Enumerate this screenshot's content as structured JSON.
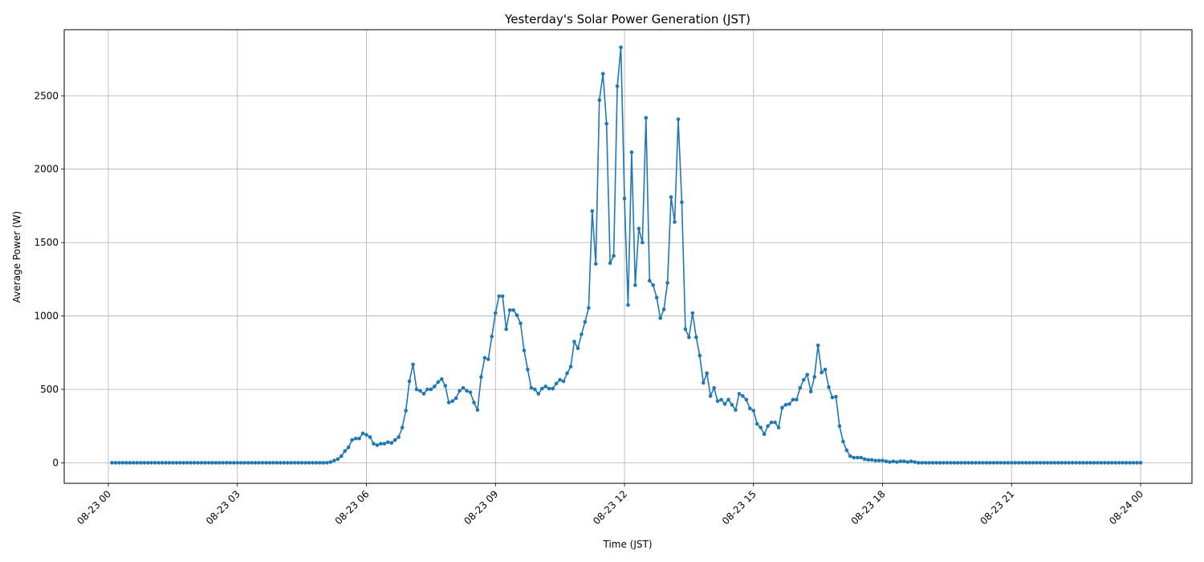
{
  "chart_data": {
    "type": "line",
    "title": "Yesterday's Solar Power Generation (JST)",
    "xlabel": "Time (JST)",
    "ylabel": "Average Power (W)",
    "x_range": [
      "2023-08-23 00:00",
      "2023-08-24 00:00"
    ],
    "x_ticks": [
      "08-23 00",
      "08-23 03",
      "08-23 06",
      "08-23 09",
      "08-23 12",
      "08-23 15",
      "08-23 18",
      "08-23 21",
      "08-24 00"
    ],
    "y_ticks": [
      0,
      500,
      1000,
      1500,
      2000,
      2500
    ],
    "ylim": [
      -140,
      2950
    ],
    "grid": true,
    "color": "#1f77b4",
    "marker": "circle",
    "series": [
      {
        "points": [
          [
            "00:05",
            0
          ],
          [
            "00:10",
            0
          ],
          [
            "00:15",
            0
          ],
          [
            "00:20",
            0
          ],
          [
            "00:25",
            0
          ],
          [
            "00:30",
            0
          ],
          [
            "00:35",
            0
          ],
          [
            "00:40",
            0
          ],
          [
            "00:45",
            0
          ],
          [
            "00:50",
            0
          ],
          [
            "00:55",
            0
          ],
          [
            "01:00",
            0
          ],
          [
            "01:05",
            0
          ],
          [
            "01:10",
            0
          ],
          [
            "01:15",
            0
          ],
          [
            "01:20",
            0
          ],
          [
            "01:25",
            0
          ],
          [
            "01:30",
            0
          ],
          [
            "01:35",
            0
          ],
          [
            "01:40",
            0
          ],
          [
            "01:45",
            0
          ],
          [
            "01:50",
            0
          ],
          [
            "01:55",
            0
          ],
          [
            "02:00",
            0
          ],
          [
            "02:05",
            0
          ],
          [
            "02:10",
            0
          ],
          [
            "02:15",
            0
          ],
          [
            "02:20",
            0
          ],
          [
            "02:25",
            0
          ],
          [
            "02:30",
            0
          ],
          [
            "02:35",
            0
          ],
          [
            "02:40",
            0
          ],
          [
            "02:45",
            0
          ],
          [
            "02:50",
            0
          ],
          [
            "02:55",
            0
          ],
          [
            "03:00",
            0
          ],
          [
            "03:05",
            0
          ],
          [
            "03:10",
            0
          ],
          [
            "03:15",
            0
          ],
          [
            "03:20",
            0
          ],
          [
            "03:25",
            0
          ],
          [
            "03:30",
            0
          ],
          [
            "03:35",
            0
          ],
          [
            "03:40",
            0
          ],
          [
            "03:45",
            0
          ],
          [
            "03:50",
            0
          ],
          [
            "03:55",
            0
          ],
          [
            "04:00",
            0
          ],
          [
            "04:05",
            0
          ],
          [
            "04:10",
            0
          ],
          [
            "04:15",
            0
          ],
          [
            "04:20",
            0
          ],
          [
            "04:25",
            0
          ],
          [
            "04:30",
            0
          ],
          [
            "04:35",
            0
          ],
          [
            "04:40",
            0
          ],
          [
            "04:45",
            0
          ],
          [
            "04:50",
            0
          ],
          [
            "04:55",
            0
          ],
          [
            "05:00",
            0
          ],
          [
            "05:05",
            0
          ],
          [
            "05:10",
            5
          ],
          [
            "05:15",
            15
          ],
          [
            "05:20",
            25
          ],
          [
            "05:25",
            45
          ],
          [
            "05:30",
            80
          ],
          [
            "05:35",
            105
          ],
          [
            "05:40",
            155
          ],
          [
            "05:45",
            165
          ],
          [
            "05:50",
            165
          ],
          [
            "05:55",
            200
          ],
          [
            "06:00",
            190
          ],
          [
            "06:05",
            175
          ],
          [
            "06:10",
            130
          ],
          [
            "06:15",
            120
          ],
          [
            "06:20",
            130
          ],
          [
            "06:25",
            130
          ],
          [
            "06:30",
            140
          ],
          [
            "06:35",
            135
          ],
          [
            "06:40",
            155
          ],
          [
            "06:45",
            175
          ],
          [
            "06:50",
            240
          ],
          [
            "06:55",
            355
          ],
          [
            "07:00",
            555
          ],
          [
            "07:05",
            670
          ],
          [
            "07:10",
            500
          ],
          [
            "07:15",
            490
          ],
          [
            "07:20",
            470
          ],
          [
            "07:25",
            500
          ],
          [
            "07:30",
            500
          ],
          [
            "07:35",
            520
          ],
          [
            "07:40",
            550
          ],
          [
            "07:45",
            570
          ],
          [
            "07:50",
            525
          ],
          [
            "07:55",
            410
          ],
          [
            "08:00",
            420
          ],
          [
            "08:05",
            440
          ],
          [
            "08:10",
            490
          ],
          [
            "08:15",
            510
          ],
          [
            "08:20",
            490
          ],
          [
            "08:25",
            480
          ],
          [
            "08:30",
            410
          ],
          [
            "08:35",
            360
          ],
          [
            "08:40",
            585
          ],
          [
            "08:45",
            715
          ],
          [
            "08:50",
            705
          ],
          [
            "08:55",
            860
          ],
          [
            "09:00",
            1020
          ],
          [
            "09:05",
            1135
          ],
          [
            "09:10",
            1135
          ],
          [
            "09:15",
            910
          ],
          [
            "09:20",
            1040
          ],
          [
            "09:25",
            1040
          ],
          [
            "09:30",
            1005
          ],
          [
            "09:35",
            950
          ],
          [
            "09:40",
            765
          ],
          [
            "09:45",
            635
          ],
          [
            "09:50",
            510
          ],
          [
            "09:55",
            500
          ],
          [
            "10:00",
            470
          ],
          [
            "10:05",
            505
          ],
          [
            "10:10",
            520
          ],
          [
            "10:15",
            505
          ],
          [
            "10:20",
            505
          ],
          [
            "10:25",
            540
          ],
          [
            "10:30",
            565
          ],
          [
            "10:35",
            555
          ],
          [
            "10:40",
            610
          ],
          [
            "10:45",
            655
          ],
          [
            "10:50",
            825
          ],
          [
            "10:55",
            780
          ],
          [
            "11:00",
            875
          ],
          [
            "11:05",
            960
          ],
          [
            "11:10",
            1055
          ],
          [
            "11:15",
            1715
          ],
          [
            "11:20",
            1355
          ],
          [
            "11:25",
            2470
          ],
          [
            "11:30",
            2650
          ],
          [
            "11:35",
            2310
          ],
          [
            "11:40",
            1360
          ],
          [
            "11:45",
            1410
          ],
          [
            "11:50",
            2565
          ],
          [
            "11:55",
            2830
          ],
          [
            "12:00",
            1800
          ],
          [
            "12:05",
            1075
          ],
          [
            "12:10",
            2115
          ],
          [
            "12:15",
            1210
          ],
          [
            "12:20",
            1595
          ],
          [
            "12:25",
            1500
          ],
          [
            "12:30",
            2350
          ],
          [
            "12:35",
            1240
          ],
          [
            "12:40",
            1210
          ],
          [
            "12:45",
            1125
          ],
          [
            "12:50",
            985
          ],
          [
            "12:55",
            1045
          ],
          [
            "13:00",
            1225
          ],
          [
            "13:05",
            1810
          ],
          [
            "13:10",
            1640
          ],
          [
            "13:15",
            2340
          ],
          [
            "13:20",
            1775
          ],
          [
            "13:25",
            910
          ],
          [
            "13:30",
            855
          ],
          [
            "13:35",
            1020
          ],
          [
            "13:40",
            855
          ],
          [
            "13:45",
            730
          ],
          [
            "13:50",
            545
          ],
          [
            "13:55",
            610
          ],
          [
            "14:00",
            455
          ],
          [
            "14:05",
            510
          ],
          [
            "14:10",
            420
          ],
          [
            "14:15",
            430
          ],
          [
            "14:20",
            400
          ],
          [
            "14:25",
            430
          ],
          [
            "14:30",
            395
          ],
          [
            "14:35",
            360
          ],
          [
            "14:40",
            470
          ],
          [
            "14:45",
            455
          ],
          [
            "14:50",
            430
          ],
          [
            "14:55",
            370
          ],
          [
            "15:00",
            355
          ],
          [
            "15:05",
            265
          ],
          [
            "15:10",
            240
          ],
          [
            "15:15",
            195
          ],
          [
            "15:20",
            250
          ],
          [
            "15:25",
            275
          ],
          [
            "15:30",
            275
          ],
          [
            "15:35",
            240
          ],
          [
            "15:40",
            375
          ],
          [
            "15:45",
            395
          ],
          [
            "15:50",
            400
          ],
          [
            "15:55",
            430
          ],
          [
            "16:00",
            430
          ],
          [
            "16:05",
            510
          ],
          [
            "16:10",
            565
          ],
          [
            "16:15",
            600
          ],
          [
            "16:20",
            485
          ],
          [
            "16:25",
            585
          ],
          [
            "16:30",
            800
          ],
          [
            "16:35",
            615
          ],
          [
            "16:40",
            635
          ],
          [
            "16:45",
            515
          ],
          [
            "16:50",
            445
          ],
          [
            "16:55",
            450
          ],
          [
            "17:00",
            250
          ],
          [
            "17:05",
            145
          ],
          [
            "17:10",
            85
          ],
          [
            "17:15",
            45
          ],
          [
            "17:20",
            35
          ],
          [
            "17:25",
            35
          ],
          [
            "17:30",
            35
          ],
          [
            "17:35",
            25
          ],
          [
            "17:40",
            20
          ],
          [
            "17:45",
            20
          ],
          [
            "17:50",
            15
          ],
          [
            "17:55",
            15
          ],
          [
            "18:00",
            15
          ],
          [
            "18:05",
            10
          ],
          [
            "18:10",
            5
          ],
          [
            "18:15",
            10
          ],
          [
            "18:20",
            5
          ],
          [
            "18:25",
            10
          ],
          [
            "18:30",
            10
          ],
          [
            "18:35",
            5
          ],
          [
            "18:40",
            10
          ],
          [
            "18:45",
            5
          ],
          [
            "18:50",
            0
          ],
          [
            "18:55",
            0
          ],
          [
            "19:00",
            0
          ],
          [
            "19:05",
            0
          ],
          [
            "19:10",
            0
          ],
          [
            "19:15",
            0
          ],
          [
            "19:20",
            0
          ],
          [
            "19:25",
            0
          ],
          [
            "19:30",
            0
          ],
          [
            "19:35",
            0
          ],
          [
            "19:40",
            0
          ],
          [
            "19:45",
            0
          ],
          [
            "19:50",
            0
          ],
          [
            "19:55",
            0
          ],
          [
            "20:00",
            0
          ],
          [
            "20:05",
            0
          ],
          [
            "20:10",
            0
          ],
          [
            "20:15",
            0
          ],
          [
            "20:20",
            0
          ],
          [
            "20:25",
            0
          ],
          [
            "20:30",
            0
          ],
          [
            "20:35",
            0
          ],
          [
            "20:40",
            0
          ],
          [
            "20:45",
            0
          ],
          [
            "20:50",
            0
          ],
          [
            "20:55",
            0
          ],
          [
            "21:00",
            0
          ],
          [
            "21:05",
            0
          ],
          [
            "21:10",
            0
          ],
          [
            "21:15",
            0
          ],
          [
            "21:20",
            0
          ],
          [
            "21:25",
            0
          ],
          [
            "21:30",
            0
          ],
          [
            "21:35",
            0
          ],
          [
            "21:40",
            0
          ],
          [
            "21:45",
            0
          ],
          [
            "21:50",
            0
          ],
          [
            "21:55",
            0
          ],
          [
            "22:00",
            0
          ],
          [
            "22:05",
            0
          ],
          [
            "22:10",
            0
          ],
          [
            "22:15",
            0
          ],
          [
            "22:20",
            0
          ],
          [
            "22:25",
            0
          ],
          [
            "22:30",
            0
          ],
          [
            "22:35",
            0
          ],
          [
            "22:40",
            0
          ],
          [
            "22:45",
            0
          ],
          [
            "22:50",
            0
          ],
          [
            "22:55",
            0
          ],
          [
            "23:00",
            0
          ],
          [
            "23:05",
            0
          ],
          [
            "23:10",
            0
          ],
          [
            "23:15",
            0
          ],
          [
            "23:20",
            0
          ],
          [
            "23:25",
            0
          ],
          [
            "23:30",
            0
          ],
          [
            "23:35",
            0
          ],
          [
            "23:40",
            0
          ],
          [
            "23:45",
            0
          ],
          [
            "23:50",
            0
          ],
          [
            "23:55",
            0
          ],
          [
            "24:00",
            0
          ]
        ]
      }
    ]
  }
}
